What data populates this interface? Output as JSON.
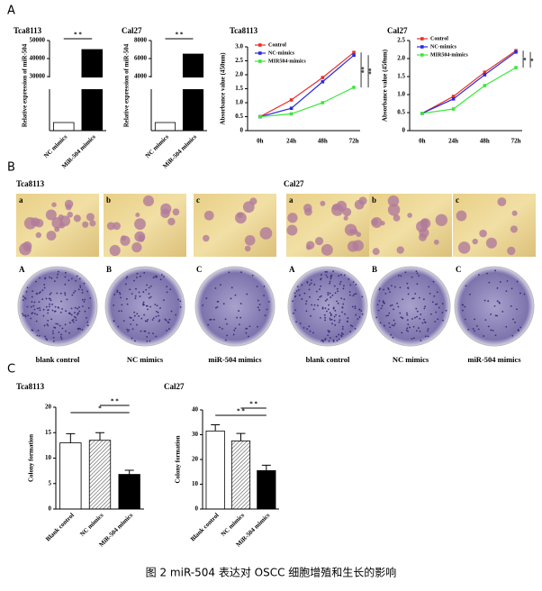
{
  "panel_letters": [
    "A",
    "B",
    "C"
  ],
  "chart_data": [
    {
      "type": "bar",
      "title": "Tca8113",
      "ylabel": "Relative expression of miR-504",
      "categories": [
        "NC mimics",
        "MiR-504 mimics"
      ],
      "values": [
        1,
        45000
      ],
      "colors": [
        "#ffffff",
        "#000000"
      ],
      "patterns": [
        "none",
        "none"
      ],
      "ylim": [
        0,
        50000
      ],
      "ybreak": [
        5,
        30000
      ],
      "yticks": [
        30000,
        40000,
        50000
      ],
      "comparisons": [
        {
          "pair": [
            0,
            1
          ],
          "label": "* *"
        }
      ]
    },
    {
      "type": "bar",
      "title": "Cal27",
      "ylabel": "Relative expression of miR-504",
      "categories": [
        "NC mimics",
        "MiR-504 mimics"
      ],
      "values": [
        1,
        6500
      ],
      "colors": [
        "#ffffff",
        "#000000"
      ],
      "patterns": [
        "none",
        "none"
      ],
      "ylim": [
        0,
        8000
      ],
      "ybreak": [
        5,
        4000
      ],
      "yticks": [
        4000,
        6000,
        8000
      ],
      "comparisons": [
        {
          "pair": [
            0,
            1
          ],
          "label": "* *"
        }
      ]
    },
    {
      "type": "line",
      "title": "Tca8113",
      "ylabel": "Absorbance value (450nm)",
      "categories": [
        "0h",
        "24h",
        "48h",
        "72h"
      ],
      "series": [
        {
          "name": "Control",
          "color": "#e8302a",
          "values": [
            0.5,
            1.1,
            1.9,
            2.8
          ]
        },
        {
          "name": "NC-mimics",
          "color": "#2a2ae0",
          "values": [
            0.5,
            0.8,
            1.75,
            2.7
          ]
        },
        {
          "name": "MIR504-mimics",
          "color": "#3ce63c",
          "values": [
            0.5,
            0.6,
            1.0,
            1.55
          ]
        }
      ],
      "ylim": [
        0,
        3
      ],
      "yticks": [
        0,
        0.5,
        {
          "value": 1,
          "label": "1.0"
        },
        1.5,
        {
          "value": 2,
          "label": "2.0"
        },
        2.5,
        {
          "value": 3,
          "label": "3.0"
        }
      ],
      "comparisons": [
        {
          "pair": [
            0,
            2
          ],
          "label": "**"
        },
        {
          "pair": [
            1,
            2
          ],
          "label": "**"
        }
      ]
    },
    {
      "type": "line",
      "title": "Cal27",
      "ylabel": "Absorbance value (450nm)",
      "categories": [
        "0h",
        "24h",
        "48h",
        "72h"
      ],
      "series": [
        {
          "name": "Control",
          "color": "#e8302a",
          "values": [
            0.48,
            0.95,
            1.62,
            2.22
          ]
        },
        {
          "name": "NC-mimics",
          "color": "#2a2ae0",
          "values": [
            0.48,
            0.88,
            1.55,
            2.18
          ]
        },
        {
          "name": "MIR504-mimics",
          "color": "#3ce63c",
          "values": [
            0.48,
            0.6,
            1.25,
            1.75
          ]
        }
      ],
      "ylim": [
        0,
        2.5
      ],
      "yticks": [
        0,
        0.5,
        {
          "value": 1,
          "label": "1.0"
        },
        1.5,
        {
          "value": 2,
          "label": "2.0"
        },
        2.5
      ],
      "comparisons": [
        {
          "pair": [
            0,
            2
          ],
          "label": "*"
        },
        {
          "pair": [
            1,
            2
          ],
          "label": "*"
        }
      ]
    },
    {
      "type": "bar",
      "title": "Tca8113",
      "ylabel": "Colony formation",
      "categories": [
        "Blank control",
        "NC mimics",
        "MiR-504 mimics"
      ],
      "values": [
        13,
        13.5,
        6.8
      ],
      "errors": [
        1.8,
        1.5,
        0.8
      ],
      "colors": [
        "#ffffff",
        "#ffffff",
        "#000000"
      ],
      "patterns": [
        "none",
        "diagonal",
        "none"
      ],
      "ylim": [
        0,
        20
      ],
      "yticks": [
        0,
        5,
        10,
        15,
        20
      ],
      "comparisons": [
        {
          "pair": [
            1,
            2
          ],
          "label": "* *"
        },
        {
          "pair": [
            0,
            2
          ],
          "label": "*"
        }
      ]
    },
    {
      "type": "bar",
      "title": "Cal27",
      "ylabel": "Colony formation",
      "categories": [
        "Blank control",
        "NC mimics",
        "MiR-504 mimics"
      ],
      "values": [
        31.5,
        27.5,
        15.5
      ],
      "errors": [
        2.5,
        3,
        2.2
      ],
      "colors": [
        "#ffffff",
        "#ffffff",
        "#000000"
      ],
      "patterns": [
        "none",
        "diagonal",
        "none"
      ],
      "ylim": [
        0,
        40
      ],
      "yticks": [
        0,
        10,
        20,
        30,
        40
      ],
      "comparisons": [
        {
          "pair": [
            1,
            2
          ],
          "label": "* *"
        },
        {
          "pair": [
            0,
            2
          ],
          "label": "* *"
        }
      ]
    }
  ],
  "panel_b": {
    "cell_lines": [
      "Tca8113",
      "Cal27"
    ],
    "image_labels": [
      "a",
      "b",
      "c"
    ],
    "dish_labels": [
      "A",
      "B",
      "C"
    ],
    "captions": [
      "blank control",
      "NC mimics",
      "miR-504 mimics"
    ]
  },
  "caption": "图 2 miR-504 表达对 OSCC 细胞增殖和生长的影响"
}
